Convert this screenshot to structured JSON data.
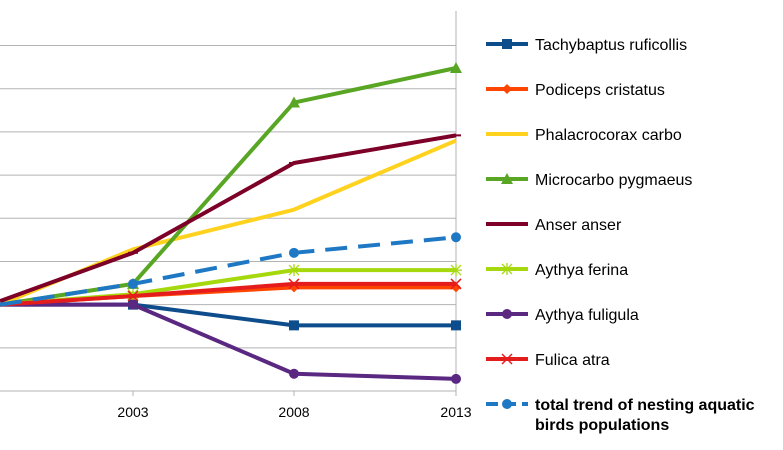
{
  "chart_data": {
    "type": "line",
    "x": [
      1998,
      2003,
      2008,
      2013
    ],
    "x_tick_labels": [
      "2003",
      "2008",
      "2013"
    ],
    "ylim": [
      0,
      2.2
    ],
    "y_gridline_step": 0.25,
    "grid": "horizontal",
    "legend_position": "right",
    "series": [
      {
        "name": "Tachybaptus ruficollis",
        "color": "#0e4d8c",
        "marker": "square",
        "dashed": false,
        "values": [
          0.5,
          0.5,
          0.38,
          0.38
        ]
      },
      {
        "name": "Podiceps cristatus",
        "color": "#ff4500",
        "marker": "diamond",
        "dashed": false,
        "values": [
          0.5,
          0.55,
          0.6,
          0.6
        ]
      },
      {
        "name": "Phalacrocorax carbo",
        "color": "#ffd21f",
        "marker": "none",
        "dashed": false,
        "values": [
          0.5,
          0.82,
          1.05,
          1.45
        ]
      },
      {
        "name": "Microcarbo pygmaeus",
        "color": "#58a624",
        "marker": "triangle",
        "dashed": false,
        "values": [
          0.5,
          0.62,
          1.67,
          1.87
        ]
      },
      {
        "name": "Anser anser",
        "color": "#7c0027",
        "marker": "dash",
        "dashed": false,
        "values": [
          0.52,
          0.8,
          1.32,
          1.48
        ]
      },
      {
        "name": "Aythya ferina",
        "color": "#a6d80e",
        "marker": "star",
        "dashed": false,
        "values": [
          0.5,
          0.56,
          0.7,
          0.7
        ]
      },
      {
        "name": "Aythya fuligula",
        "color": "#5a2781",
        "marker": "circle",
        "dashed": false,
        "values": [
          0.5,
          0.5,
          0.1,
          0.07
        ]
      },
      {
        "name": "Fulica atra",
        "color": "#e51c1c",
        "marker": "x",
        "dashed": false,
        "values": [
          0.5,
          0.55,
          0.62,
          0.62
        ]
      },
      {
        "name": "total trend of nesting aquatic birds populations",
        "color": "#1f78c4",
        "marker": "circle",
        "dashed": true,
        "bold_label": true,
        "values": [
          0.5,
          0.62,
          0.8,
          0.89
        ]
      }
    ]
  }
}
